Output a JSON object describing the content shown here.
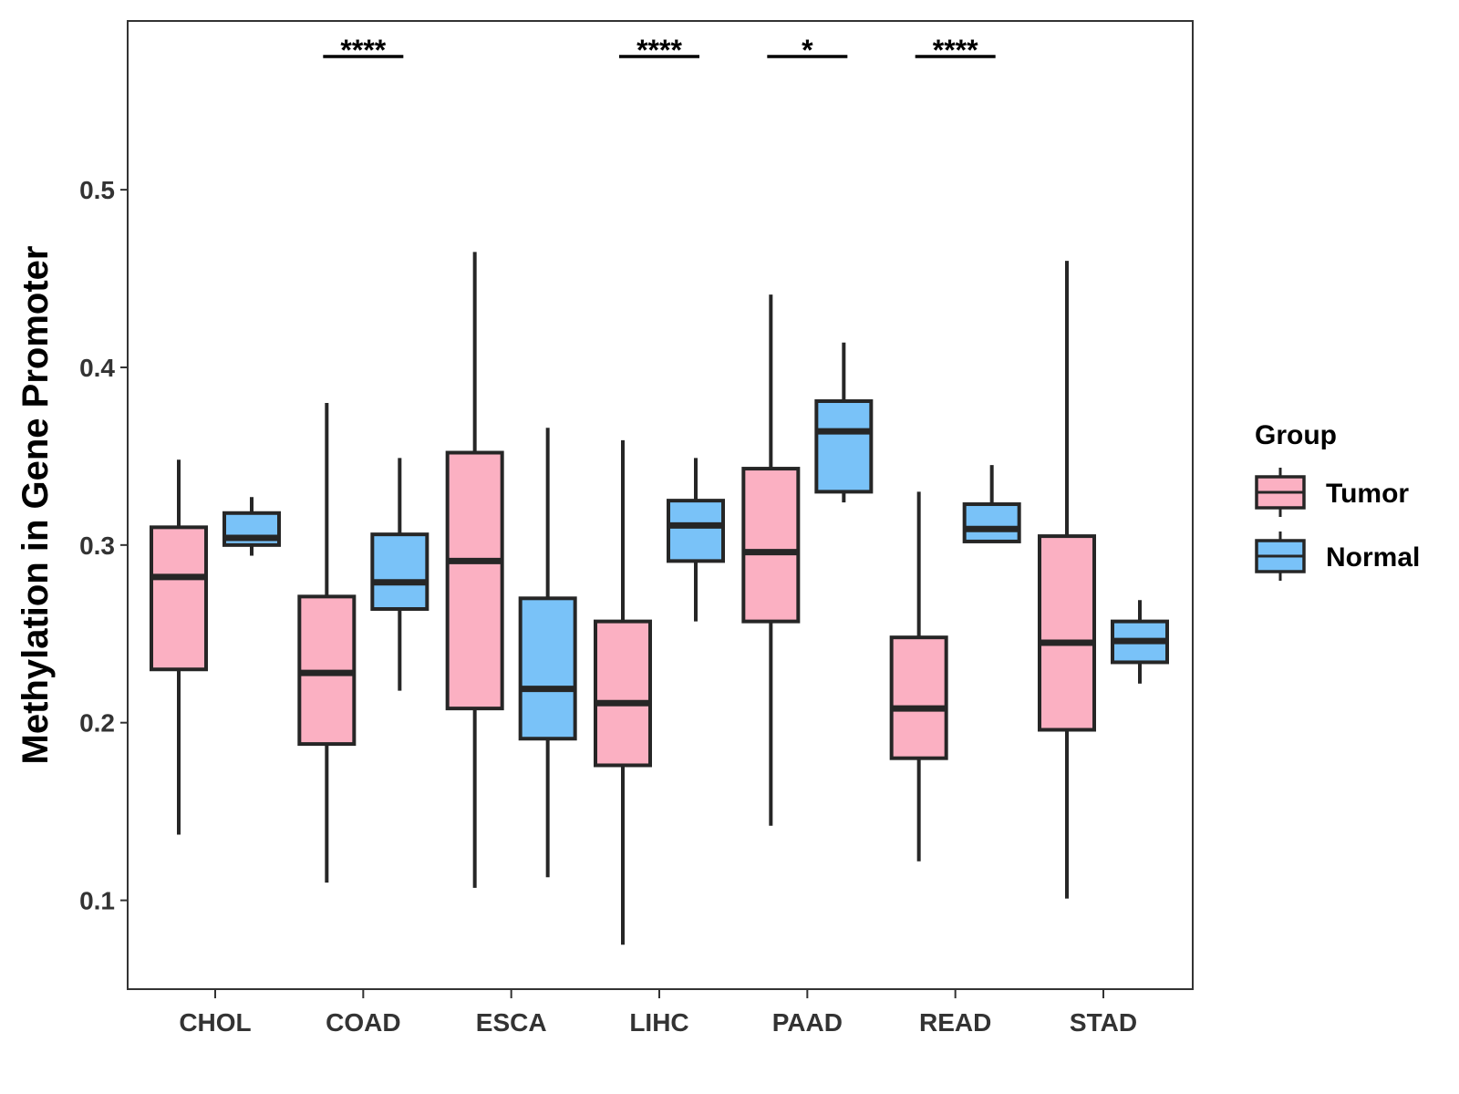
{
  "chart_data": {
    "type": "boxplot",
    "title": "",
    "xlabel": "",
    "ylabel": "Methylation in Gene Promoter",
    "ylim": [
      0.05,
      0.595
    ],
    "yticks": [
      0.1,
      0.2,
      0.3,
      0.4,
      0.5
    ],
    "ytick_labels": [
      "0.1",
      "0.2",
      "0.3",
      "0.4",
      "0.5"
    ],
    "categories": [
      "CHOL",
      "COAD",
      "ESCA",
      "LIHC",
      "PAAD",
      "READ",
      "STAD"
    ],
    "legend": {
      "title": "Group",
      "position": "right",
      "entries": [
        {
          "name": "Tumor",
          "color": "#FBB0C2"
        },
        {
          "name": "Normal",
          "color": "#79C2F8"
        }
      ]
    },
    "series": [
      {
        "name": "Tumor",
        "color": "#FBB0C2",
        "boxes": [
          {
            "category": "CHOL",
            "min": 0.137,
            "q1": 0.23,
            "median": 0.282,
            "q3": 0.31,
            "max": 0.348
          },
          {
            "category": "COAD",
            "min": 0.11,
            "q1": 0.188,
            "median": 0.228,
            "q3": 0.271,
            "max": 0.38
          },
          {
            "category": "ESCA",
            "min": 0.107,
            "q1": 0.208,
            "median": 0.291,
            "q3": 0.352,
            "max": 0.465
          },
          {
            "category": "LIHC",
            "min": 0.075,
            "q1": 0.176,
            "median": 0.211,
            "q3": 0.257,
            "max": 0.359
          },
          {
            "category": "PAAD",
            "min": 0.142,
            "q1": 0.257,
            "median": 0.296,
            "q3": 0.343,
            "max": 0.441
          },
          {
            "category": "READ",
            "min": 0.122,
            "q1": 0.18,
            "median": 0.208,
            "q3": 0.248,
            "max": 0.33
          },
          {
            "category": "STAD",
            "min": 0.101,
            "q1": 0.196,
            "median": 0.245,
            "q3": 0.305,
            "max": 0.46
          }
        ]
      },
      {
        "name": "Normal",
        "color": "#79C2F8",
        "boxes": [
          {
            "category": "CHOL",
            "min": 0.294,
            "q1": 0.3,
            "median": 0.304,
            "q3": 0.318,
            "max": 0.327
          },
          {
            "category": "COAD",
            "min": 0.218,
            "q1": 0.264,
            "median": 0.279,
            "q3": 0.306,
            "max": 0.349
          },
          {
            "category": "ESCA",
            "min": 0.113,
            "q1": 0.191,
            "median": 0.219,
            "q3": 0.27,
            "max": 0.366
          },
          {
            "category": "LIHC",
            "min": 0.257,
            "q1": 0.291,
            "median": 0.311,
            "q3": 0.325,
            "max": 0.349
          },
          {
            "category": "PAAD",
            "min": 0.324,
            "q1": 0.33,
            "median": 0.364,
            "q3": 0.381,
            "max": 0.414
          },
          {
            "category": "READ",
            "min": 0.302,
            "q1": 0.302,
            "median": 0.309,
            "q3": 0.323,
            "max": 0.345
          },
          {
            "category": "STAD",
            "min": 0.222,
            "q1": 0.234,
            "median": 0.246,
            "q3": 0.257,
            "max": 0.269
          }
        ]
      }
    ],
    "significance": [
      {
        "category": "COAD",
        "label": "****"
      },
      {
        "category": "LIHC",
        "label": "****"
      },
      {
        "category": "PAAD",
        "label": "*"
      },
      {
        "category": "READ",
        "label": "****"
      }
    ],
    "significance_y": 0.575,
    "grid": false
  }
}
